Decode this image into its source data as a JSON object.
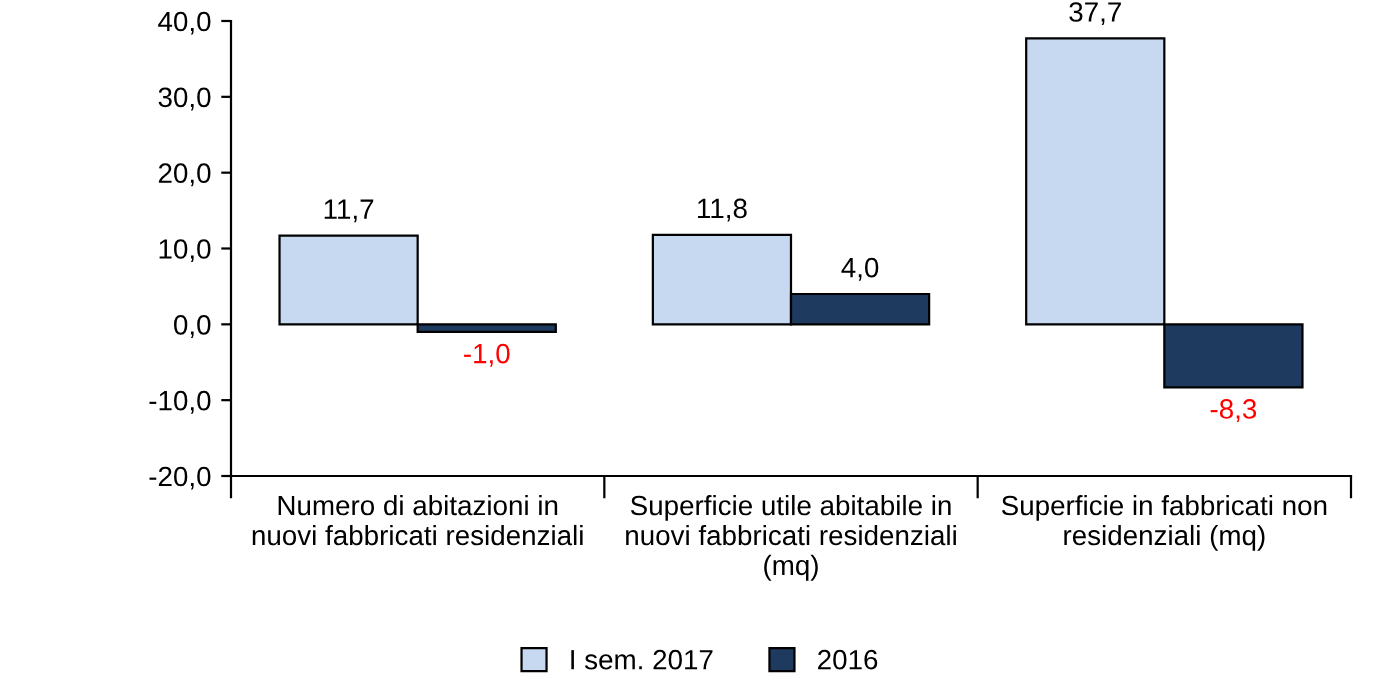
{
  "chart_data": {
    "type": "bar",
    "categories": [
      "Numero di abitazioni in\nnuovi fabbricati residenziali",
      "Superficie utile abitabile in\nnuovi fabbricati residenziali\n(mq)",
      "Superficie in fabbricati non\nresidenziali (mq)"
    ],
    "series": [
      {
        "name": "I sem. 2017",
        "color": "#c6d9f1",
        "values": [
          11.7,
          11.8,
          37.7
        ],
        "value_labels": [
          "11,7",
          "11,8",
          "37,7"
        ]
      },
      {
        "name": "2016",
        "color": "#1f3a5f",
        "values": [
          -1.0,
          4.0,
          -8.3
        ],
        "value_labels": [
          "-1,0",
          "4,0",
          "-8,3"
        ]
      }
    ],
    "ylim": [
      -20,
      40
    ],
    "yticks": [
      {
        "value": -20,
        "label": "-20,0"
      },
      {
        "value": -10,
        "label": "-10,0"
      },
      {
        "value": 0,
        "label": "0,0"
      },
      {
        "value": 10,
        "label": "10,0"
      },
      {
        "value": 20,
        "label": "20,0"
      },
      {
        "value": 30,
        "label": "30,0"
      },
      {
        "value": 40,
        "label": "40,0"
      }
    ],
    "grid": false,
    "legend": "bottom"
  }
}
